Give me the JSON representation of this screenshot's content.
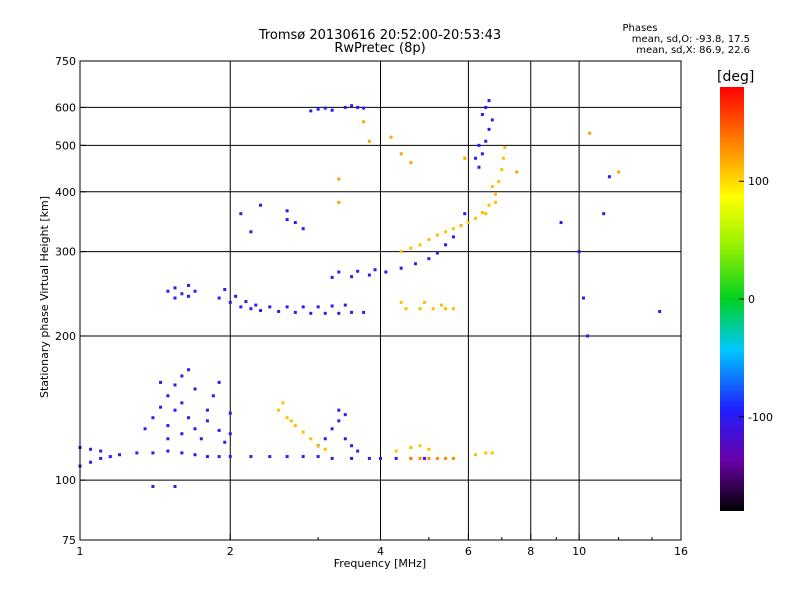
{
  "header": {
    "title_line1": "Tromsø 20130616 20:52:00-20:53:43",
    "title_line2": "RwPretec (8p)"
  },
  "stats": {
    "title": "Phases",
    "line1": "mean, sd,O:  -93.8, 17.5",
    "line2": "mean, sd,X:   86.9, 22.6"
  },
  "chart_data": {
    "type": "scatter",
    "xlabel": "Frequency [MHz]",
    "ylabel": "Stationary phase Virtual Height [km]",
    "x_scale": "log",
    "y_scale": "log",
    "xlim": [
      1,
      16
    ],
    "ylim": [
      75,
      750
    ],
    "x_ticks": [
      1,
      2,
      4,
      6,
      8,
      10,
      16
    ],
    "x_tick_labels": [
      "1",
      "2",
      "4",
      "6",
      "8",
      "10",
      "16"
    ],
    "y_ticks": [
      75,
      100,
      200,
      300,
      400,
      500,
      600,
      750
    ],
    "y_tick_labels": [
      "75",
      "100",
      "200",
      "300",
      "400",
      "500",
      "600",
      "750"
    ],
    "grid": true,
    "colorbar": {
      "label": "[deg]",
      "ticks": [
        100,
        0,
        -100
      ],
      "tick_labels": [
        "100",
        "0",
        "-100"
      ],
      "range": [
        -180,
        180
      ]
    },
    "traces": [
      {
        "name": "",
        "phase": -100,
        "points": [
          [
            1.0,
            107
          ],
          [
            1.05,
            109
          ],
          [
            1.1,
            111
          ],
          [
            1.15,
            112
          ],
          [
            1.2,
            113
          ],
          [
            1.3,
            114
          ],
          [
            1.4,
            114
          ],
          [
            1.5,
            115
          ],
          [
            1.6,
            114
          ],
          [
            1.7,
            113
          ],
          [
            1.8,
            112
          ],
          [
            1.9,
            112
          ],
          [
            2.0,
            112
          ],
          [
            2.2,
            112
          ],
          [
            2.4,
            112
          ],
          [
            2.6,
            112
          ],
          [
            2.8,
            112
          ],
          [
            3.0,
            112
          ],
          [
            3.2,
            111
          ],
          [
            3.5,
            111
          ],
          [
            3.8,
            111
          ],
          [
            4.0,
            111
          ],
          [
            4.3,
            111
          ],
          [
            4.6,
            111
          ],
          [
            4.9,
            111
          ]
        ]
      },
      {
        "name": "",
        "phase": 130,
        "points": [
          [
            4.6,
            111
          ],
          [
            4.8,
            111
          ],
          [
            5.0,
            111
          ],
          [
            5.2,
            111
          ],
          [
            5.4,
            111
          ],
          [
            5.6,
            111
          ]
        ]
      },
      {
        "name": "",
        "phase": -100,
        "points": [
          [
            1.0,
            117
          ],
          [
            1.05,
            116
          ],
          [
            1.1,
            115
          ]
        ]
      },
      {
        "name": "",
        "phase": -100,
        "points": [
          [
            1.35,
            128
          ],
          [
            1.4,
            135
          ],
          [
            1.45,
            142
          ],
          [
            1.5,
            150
          ],
          [
            1.55,
            158
          ],
          [
            1.6,
            165
          ],
          [
            1.55,
            140
          ],
          [
            1.5,
            130
          ],
          [
            1.6,
            125
          ],
          [
            1.65,
            135
          ],
          [
            1.7,
            128
          ],
          [
            1.75,
            122
          ],
          [
            1.8,
            140
          ],
          [
            1.65,
            170
          ],
          [
            1.7,
            155
          ],
          [
            1.8,
            133
          ],
          [
            1.9,
            127
          ],
          [
            1.95,
            120
          ],
          [
            2.0,
            125
          ],
          [
            1.45,
            160
          ],
          [
            1.5,
            122
          ],
          [
            1.6,
            145
          ],
          [
            1.85,
            150
          ],
          [
            1.9,
            160
          ],
          [
            2.0,
            138
          ]
        ]
      },
      {
        "name": "",
        "phase": -100,
        "points": [
          [
            3.0,
            118
          ],
          [
            3.1,
            122
          ],
          [
            3.2,
            128
          ],
          [
            3.3,
            133
          ],
          [
            3.4,
            122
          ],
          [
            3.5,
            118
          ],
          [
            3.6,
            115
          ],
          [
            3.3,
            140
          ],
          [
            3.4,
            137
          ]
        ]
      },
      {
        "name": "",
        "phase": 110,
        "points": [
          [
            2.5,
            140
          ],
          [
            2.6,
            135
          ],
          [
            2.7,
            130
          ],
          [
            2.8,
            126
          ],
          [
            2.9,
            122
          ],
          [
            3.0,
            118
          ],
          [
            3.1,
            116
          ],
          [
            2.55,
            145
          ],
          [
            2.65,
            133
          ]
        ]
      },
      {
        "name": "",
        "phase": 110,
        "points": [
          [
            4.3,
            115
          ],
          [
            4.6,
            117
          ],
          [
            4.8,
            118
          ],
          [
            5.0,
            116
          ],
          [
            6.2,
            113
          ],
          [
            6.5,
            114
          ],
          [
            6.7,
            114
          ]
        ]
      },
      {
        "name": "",
        "phase": -100,
        "points": [
          [
            1.5,
            248
          ],
          [
            1.55,
            252
          ],
          [
            1.6,
            245
          ],
          [
            1.65,
            255
          ],
          [
            1.7,
            248
          ],
          [
            1.55,
            240
          ],
          [
            1.65,
            242
          ]
        ]
      },
      {
        "name": "",
        "phase": -100,
        "points": [
          [
            1.9,
            240
          ],
          [
            2.0,
            235
          ],
          [
            2.1,
            230
          ],
          [
            2.2,
            228
          ],
          [
            2.3,
            226
          ],
          [
            2.5,
            225
          ],
          [
            2.7,
            224
          ],
          [
            2.9,
            223
          ],
          [
            3.1,
            223
          ],
          [
            3.3,
            223
          ],
          [
            3.5,
            224
          ],
          [
            3.7,
            224
          ],
          [
            1.95,
            250
          ],
          [
            2.05,
            242
          ],
          [
            2.15,
            236
          ],
          [
            2.25,
            232
          ],
          [
            2.4,
            230
          ],
          [
            2.6,
            230
          ],
          [
            2.8,
            230
          ],
          [
            3.0,
            230
          ],
          [
            3.2,
            231
          ],
          [
            3.4,
            232
          ]
        ]
      },
      {
        "name": "",
        "phase": 110,
        "points": [
          [
            4.5,
            228
          ],
          [
            4.8,
            228
          ],
          [
            5.1,
            228
          ],
          [
            5.4,
            228
          ],
          [
            5.6,
            228
          ],
          [
            4.4,
            235
          ],
          [
            4.9,
            235
          ],
          [
            5.3,
            232
          ]
        ]
      },
      {
        "name": "",
        "phase": -100,
        "points": [
          [
            3.2,
            265
          ],
          [
            3.5,
            266
          ],
          [
            3.8,
            268
          ],
          [
            4.1,
            272
          ],
          [
            4.4,
            277
          ],
          [
            4.7,
            283
          ],
          [
            5.0,
            290
          ],
          [
            5.2,
            298
          ],
          [
            5.4,
            310
          ],
          [
            5.6,
            322
          ],
          [
            5.8,
            340
          ],
          [
            5.9,
            360
          ],
          [
            3.3,
            272
          ],
          [
            3.6,
            273
          ],
          [
            3.9,
            275
          ]
        ]
      },
      {
        "name": "",
        "phase": 110,
        "points": [
          [
            4.4,
            300
          ],
          [
            4.6,
            305
          ],
          [
            4.8,
            310
          ],
          [
            5.0,
            318
          ],
          [
            5.2,
            325
          ],
          [
            5.4,
            330
          ],
          [
            5.6,
            335
          ],
          [
            5.8,
            340
          ],
          [
            6.0,
            345
          ],
          [
            6.2,
            352
          ],
          [
            6.4,
            362
          ],
          [
            6.6,
            375
          ],
          [
            6.8,
            395
          ],
          [
            6.9,
            420
          ],
          [
            7.0,
            445
          ],
          [
            7.05,
            470
          ],
          [
            7.1,
            495
          ],
          [
            6.7,
            410
          ],
          [
            6.8,
            380
          ],
          [
            6.5,
            360
          ]
        ]
      },
      {
        "name": "",
        "phase": -100,
        "points": [
          [
            6.3,
            450
          ],
          [
            6.4,
            480
          ],
          [
            6.5,
            510
          ],
          [
            6.6,
            540
          ],
          [
            6.7,
            565
          ],
          [
            6.5,
            600
          ],
          [
            6.4,
            580
          ],
          [
            6.6,
            620
          ],
          [
            6.3,
            500
          ],
          [
            6.2,
            470
          ]
        ]
      },
      {
        "name": "",
        "phase": -100,
        "points": [
          [
            2.9,
            590
          ],
          [
            3.0,
            595
          ],
          [
            3.1,
            598
          ],
          [
            3.2,
            592
          ],
          [
            3.4,
            600
          ],
          [
            3.5,
            605
          ],
          [
            3.6,
            600
          ],
          [
            3.7,
            598
          ]
        ]
      },
      {
        "name": "",
        "phase": -100,
        "points": [
          [
            2.6,
            350
          ],
          [
            2.7,
            345
          ],
          [
            2.8,
            335
          ],
          [
            2.6,
            365
          ],
          [
            2.2,
            330
          ],
          [
            2.1,
            360
          ],
          [
            2.3,
            375
          ]
        ]
      },
      {
        "name": "",
        "phase": -100,
        "points": [
          [
            1.4,
            97
          ],
          [
            1.55,
            97
          ],
          [
            10.0,
            300
          ],
          [
            10.2,
            240
          ],
          [
            10.4,
            200
          ],
          [
            11.2,
            360
          ],
          [
            11.5,
            430
          ],
          [
            14.5,
            225
          ],
          [
            9.2,
            345
          ]
        ]
      },
      {
        "name": "",
        "phase": 120,
        "points": [
          [
            4.4,
            480
          ],
          [
            4.6,
            460
          ],
          [
            4.2,
            520
          ],
          [
            5.9,
            470
          ],
          [
            3.8,
            510
          ],
          [
            3.7,
            560
          ],
          [
            7.5,
            440
          ],
          [
            12.0,
            440
          ],
          [
            10.5,
            530
          ],
          [
            3.3,
            425
          ],
          [
            3.3,
            380
          ]
        ]
      }
    ]
  },
  "colors": {
    "background": "#ffffff",
    "grid": "#000000"
  }
}
